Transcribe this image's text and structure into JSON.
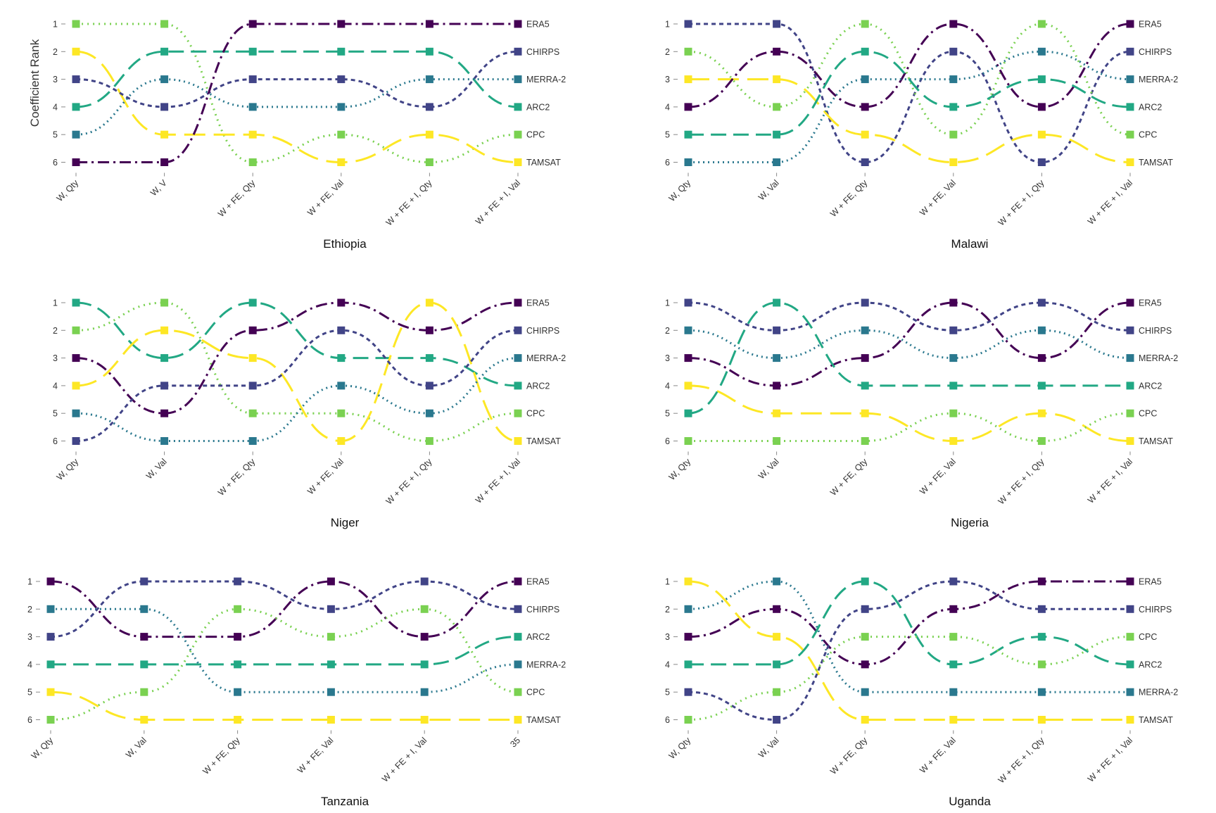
{
  "figure": {
    "y_axis_label": "Coefficient Rank"
  },
  "colors": {
    "CPC": "#7ad151",
    "ERA5": "#440154",
    "MERRA-2": "#2a788e",
    "ARC2": "#22a884",
    "CHIRPS": "#414487",
    "TAMSAT": "#fde725"
  },
  "dashes": {
    "CPC": "2 6",
    "ERA5": "16 6 3 6",
    "MERRA-2": "2 5",
    "ARC2": "22 10",
    "CHIRPS": "6 5",
    "TAMSAT": "30 12"
  },
  "chart_data": [
    {
      "type": "bump",
      "title": "Ethiopia",
      "ylabel": "Coefficient Rank",
      "y_ticks": [
        "1",
        "2",
        "3",
        "4",
        "5",
        "6"
      ],
      "categories": [
        "W, Qty",
        "W, V",
        "W + FE, Qty",
        "W + FE, Val",
        "W + FE + I, Qty",
        "W + FE + I, Val"
      ],
      "series": [
        {
          "name": "CPC",
          "values": [
            1,
            1,
            6,
            5,
            6,
            5
          ]
        },
        {
          "name": "TAMSAT",
          "values": [
            2,
            5,
            5,
            6,
            5,
            6
          ]
        },
        {
          "name": "CHIRPS",
          "values": [
            3,
            4,
            3,
            3,
            4,
            2
          ]
        },
        {
          "name": "ARC2",
          "values": [
            4,
            2,
            2,
            2,
            2,
            4
          ]
        },
        {
          "name": "MERRA-2",
          "values": [
            5,
            3,
            4,
            4,
            3,
            3
          ]
        },
        {
          "name": "ERA5",
          "values": [
            6,
            6,
            1,
            1,
            1,
            1
          ]
        }
      ]
    },
    {
      "type": "bump",
      "title": "Malawi",
      "ylabel": "",
      "y_ticks": [
        "1",
        "2",
        "3",
        "4",
        "5",
        "6"
      ],
      "categories": [
        "W, Qty",
        "W, Val",
        "W + FE, Qty",
        "W + FE, Val",
        "W + FE + I, Qty",
        "W + FE + I, Val"
      ],
      "series": [
        {
          "name": "CHIRPS",
          "values": [
            1,
            1,
            6,
            2,
            6,
            2
          ]
        },
        {
          "name": "CPC",
          "values": [
            2,
            4,
            1,
            5,
            1,
            5
          ]
        },
        {
          "name": "TAMSAT",
          "values": [
            3,
            3,
            5,
            6,
            5,
            6
          ]
        },
        {
          "name": "ERA5",
          "values": [
            4,
            2,
            4,
            1,
            4,
            1
          ]
        },
        {
          "name": "ARC2",
          "values": [
            5,
            5,
            2,
            4,
            3,
            4
          ]
        },
        {
          "name": "MERRA-2",
          "values": [
            6,
            6,
            3,
            3,
            2,
            3
          ]
        }
      ]
    },
    {
      "type": "bump",
      "title": "Niger",
      "ylabel": "",
      "y_ticks": [
        "1",
        "2",
        "3",
        "4",
        "5",
        "6"
      ],
      "categories": [
        "W, Qty",
        "W, Val",
        "W + FE, Qty",
        "W + FE, Val",
        "W + FE + I, Qty",
        "W + FE + I, Val"
      ],
      "series": [
        {
          "name": "ARC2",
          "values": [
            1,
            3,
            1,
            3,
            3,
            4
          ]
        },
        {
          "name": "CPC",
          "values": [
            2,
            1,
            5,
            5,
            6,
            5
          ]
        },
        {
          "name": "ERA5",
          "values": [
            3,
            5,
            2,
            1,
            2,
            1
          ]
        },
        {
          "name": "TAMSAT",
          "values": [
            4,
            2,
            3,
            6,
            1,
            6
          ]
        },
        {
          "name": "MERRA-2",
          "values": [
            5,
            6,
            6,
            4,
            5,
            3
          ]
        },
        {
          "name": "CHIRPS",
          "values": [
            6,
            4,
            4,
            2,
            4,
            2
          ]
        }
      ]
    },
    {
      "type": "bump",
      "title": "Nigeria",
      "ylabel": "",
      "y_ticks": [
        "1",
        "2",
        "3",
        "4",
        "5",
        "6"
      ],
      "categories": [
        "W, Qty",
        "W, Val",
        "W + FE, Qty",
        "W + FE, Val",
        "W + FE + I, Qty",
        "W + FE + I, Val"
      ],
      "series": [
        {
          "name": "CHIRPS",
          "values": [
            1,
            2,
            1,
            2,
            1,
            2
          ]
        },
        {
          "name": "MERRA-2",
          "values": [
            2,
            3,
            2,
            3,
            2,
            3
          ]
        },
        {
          "name": "ERA5",
          "values": [
            3,
            4,
            3,
            1,
            3,
            1
          ]
        },
        {
          "name": "TAMSAT",
          "values": [
            4,
            5,
            5,
            6,
            5,
            6
          ]
        },
        {
          "name": "ARC2",
          "values": [
            5,
            1,
            4,
            4,
            4,
            4
          ]
        },
        {
          "name": "CPC",
          "values": [
            6,
            6,
            6,
            5,
            6,
            5
          ]
        }
      ]
    },
    {
      "type": "bump",
      "title": "Tanzania",
      "ylabel": "",
      "y_ticks": [
        "1",
        "2",
        "3",
        "4",
        "5",
        "6"
      ],
      "categories": [
        "W, Qty",
        "W, Val",
        "W + FE, Qty",
        "W + FE, Val",
        "W + FE + I, Val",
        "35"
      ],
      "series": [
        {
          "name": "ERA5",
          "values": [
            1,
            3,
            3,
            1,
            3,
            1
          ]
        },
        {
          "name": "MERRA-2",
          "values": [
            2,
            2,
            5,
            5,
            5,
            4
          ]
        },
        {
          "name": "CHIRPS",
          "values": [
            3,
            1,
            1,
            2,
            1,
            2
          ]
        },
        {
          "name": "ARC2",
          "values": [
            4,
            4,
            4,
            4,
            4,
            3
          ]
        },
        {
          "name": "TAMSAT",
          "values": [
            5,
            6,
            6,
            6,
            6,
            6
          ]
        },
        {
          "name": "CPC",
          "values": [
            6,
            5,
            2,
            3,
            2,
            5
          ]
        }
      ]
    },
    {
      "type": "bump",
      "title": "Uganda",
      "ylabel": "",
      "y_ticks": [
        "1",
        "2",
        "3",
        "4",
        "5",
        "6"
      ],
      "categories": [
        "W, Qty",
        "W, Val",
        "W + FE, Qty",
        "W + FE, Val",
        "W + FE + I, Qty",
        "W + FE + I, Val"
      ],
      "series": [
        {
          "name": "TAMSAT",
          "values": [
            1,
            3,
            6,
            6,
            6,
            6
          ]
        },
        {
          "name": "MERRA-2",
          "values": [
            2,
            1,
            5,
            5,
            5,
            5
          ]
        },
        {
          "name": "ERA5",
          "values": [
            3,
            2,
            4,
            2,
            1,
            1
          ]
        },
        {
          "name": "ARC2",
          "values": [
            4,
            4,
            1,
            4,
            3,
            4
          ]
        },
        {
          "name": "CHIRPS",
          "values": [
            5,
            6,
            2,
            1,
            2,
            2
          ]
        },
        {
          "name": "CPC",
          "values": [
            6,
            5,
            3,
            3,
            4,
            3
          ]
        }
      ]
    }
  ]
}
